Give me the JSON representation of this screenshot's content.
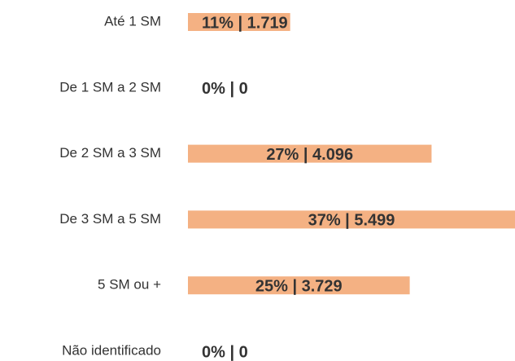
{
  "chart_data": {
    "type": "bar",
    "orientation": "horizontal",
    "categories": [
      "Até 1 SM",
      "De 1 SM a 2 SM",
      "De 2 SM a 3 SM",
      "De 3 SM a 5 SM",
      "5 SM ou +",
      "Não identificado"
    ],
    "values": [
      1719,
      0,
      4096,
      5499,
      3729,
      0
    ],
    "value_labels": [
      "11% | 1.719",
      "0% | 0",
      "27% | 4.096",
      "37% | 5.499",
      "25% | 3.729",
      "0% | 0"
    ],
    "color": "#f4b183"
  }
}
